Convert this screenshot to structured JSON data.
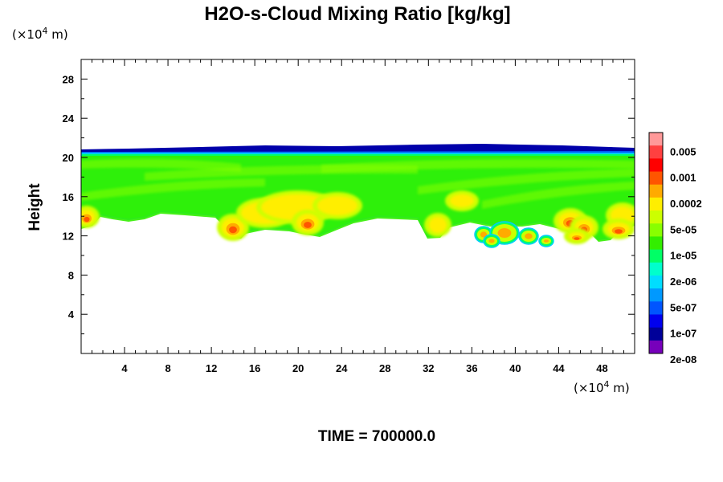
{
  "chart_data": {
    "type": "heatmap",
    "title": "H2O-s-Cloud Mixing Ratio [kg/kg]",
    "ylabel": "Height",
    "x_unit_prefix": "(×10",
    "x_unit_exp": "4",
    "x_unit_suffix": " m)",
    "y_unit_prefix": "(×10",
    "y_unit_exp": "4",
    "y_unit_suffix": " m)",
    "x_range": [
      0,
      51
    ],
    "y_range": [
      0,
      30
    ],
    "x_ticks": [
      "4",
      "8",
      "12",
      "16",
      "20",
      "24",
      "28",
      "32",
      "36",
      "40",
      "44",
      "48"
    ],
    "y_ticks": [
      "4",
      "8",
      "12",
      "16",
      "20",
      "24",
      "28"
    ],
    "colorbar": {
      "labels": [
        "0.005",
        "0.001",
        "0.0002",
        "5e-05",
        "1e-05",
        "2e-06",
        "5e-07",
        "1e-07",
        "2e-08"
      ],
      "colors": [
        "#ff9999",
        "#ff4040",
        "#ff0000",
        "#ff5500",
        "#ffaa00",
        "#ffee00",
        "#ccff00",
        "#88ff00",
        "#33ee00",
        "#00ff66",
        "#00ffcc",
        "#00ddff",
        "#0099ff",
        "#0055ff",
        "#0000ee",
        "#000099",
        "#7700bb"
      ]
    },
    "cloud_layer": {
      "top_height": 20.5,
      "base_height": 13.5,
      "description": "continuous cloud band from x=0 to x=51, deeper cells at x≈13-22, 31-34 and 37-51"
    },
    "footer": "TIME = 700000.0"
  }
}
